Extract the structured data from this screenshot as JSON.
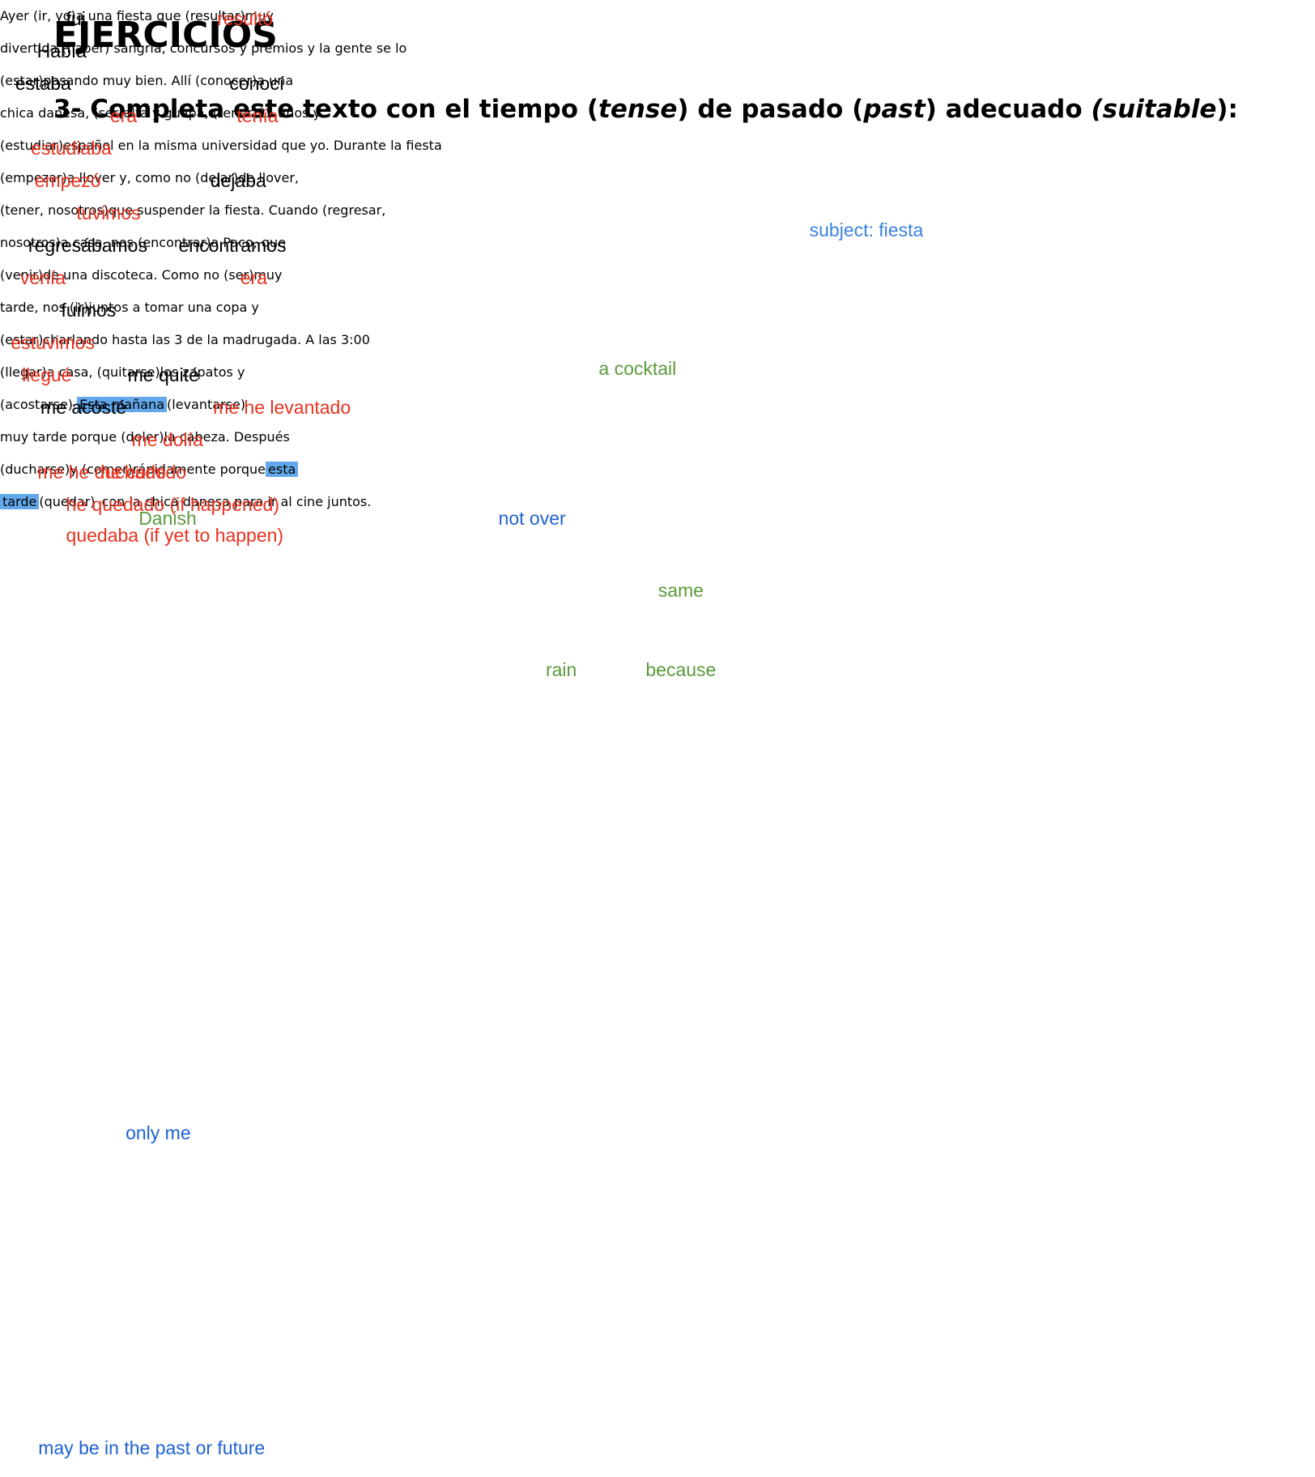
{
  "heading": "EJERCICIOS",
  "instruction": [
    {
      "text": "3- Completa este texto con el tiempo ("
    },
    {
      "text": "tense",
      "italic": true
    },
    {
      "text": ") de pasado ("
    },
    {
      "text": "past",
      "italic": true
    },
    {
      "text": ") adecuado "
    },
    {
      "text": "(suitable",
      "italic": true
    },
    {
      "text": "):"
    }
  ],
  "lines": [
    [
      {
        "text": "Ayer (ir, yo)"
      },
      {
        "answer": "fui",
        "color": "#000000"
      },
      {
        "text": "a una fiesta que (resultar)"
      },
      {
        "answer": "resultó",
        "color": "#e8321f"
      },
      {
        "text": "muy"
      }
    ],
    [
      {
        "text": "divertida."
      },
      {
        "answer": "Había",
        "color": "#000000"
      },
      {
        "text": "(haber) sangría, concursos y premios y la gente se lo"
      }
    ],
    [
      {
        "text": "(estar)"
      },
      {
        "answer": "estaba",
        "color": "#000000"
      },
      {
        "text": "pasando muy bien. Allí (conocer)"
      },
      {
        "answer": "conocí",
        "color": "#000000"
      },
      {
        "text": "a una"
      }
    ],
    [
      {
        "text": "chica danesa, (ser)"
      },
      {
        "answer": "era",
        "color": "#e8321f"
      },
      {
        "text": "alta y guapa, (tener)"
      },
      {
        "answer": "tenía",
        "color": "#e8321f"
      },
      {
        "text": "25 años y"
      }
    ],
    [
      {
        "text": "(estudiar)"
      },
      {
        "answer": "estudiaba",
        "color": "#e8321f"
      },
      {
        "text": "español en la misma universidad que yo. Durante la fiesta"
      }
    ],
    [
      {
        "text": "(empezar)"
      },
      {
        "answer": "empezó",
        "color": "#e8321f"
      },
      {
        "text": "a llover y, como no (dejar)"
      },
      {
        "answer": "dejaba",
        "color": "#000000"
      },
      {
        "text": "de llover,"
      }
    ],
    [
      {
        "text": "(tener, nosotros)"
      },
      {
        "answer": "tuvimos",
        "color": "#e8321f"
      },
      {
        "text": "que suspender la fiesta. Cuando (regresar,"
      }
    ],
    [
      {
        "text": "nosotros)"
      },
      {
        "answer": "regresábamos",
        "color": "#000000"
      },
      {
        "text": "a casa, nos (encontrar)"
      },
      {
        "answer": "encontramos",
        "color": "#000000"
      },
      {
        "text": "a Paco, que"
      }
    ],
    [
      {
        "text": "(venir)"
      },
      {
        "answer": "venía",
        "color": "#e8321f"
      },
      {
        "text": "de una discoteca. Como no (ser)"
      },
      {
        "answer": "era",
        "color": "#e8321f"
      },
      {
        "text": "muy"
      }
    ],
    [
      {
        "text": "tarde, nos (ir)"
      },
      {
        "answer": "fuimos",
        "color": "#000000"
      },
      {
        "text": "juntos a tomar una copa y"
      }
    ],
    [
      {
        "text": "(estar)"
      },
      {
        "answer": "estuvimos",
        "color": "#e8321f"
      },
      {
        "text": "charlando hasta las 3 de la madrugada. A las 3:00"
      }
    ],
    [
      {
        "text": "(llegar)"
      },
      {
        "answer": "llegué",
        "color": "#e8321f"
      },
      {
        "text": "a casa, (quitarse)"
      },
      {
        "answer": "me quité",
        "color": "#000000"
      },
      {
        "text": "los zapatos y"
      }
    ],
    [
      {
        "text": "(acostarse)"
      },
      {
        "answer": "me acosté",
        "color": "#000000"
      },
      {
        "text": "."
      },
      {
        "text": "Esta mañana",
        "highlight": true
      },
      {
        "text": "(levantarse)"
      },
      {
        "answer": "me he levantado",
        "color": "#e8321f"
      }
    ],
    [
      {
        "text": "muy tarde porque (doler)"
      },
      {
        "answer": "me dolía",
        "color": "#e8321f"
      },
      {
        "text": "la cabeza. Después"
      }
    ],
    [
      {
        "text": "(ducharse)"
      },
      {
        "answer": "me he duchado",
        "color": "#e8321f"
      },
      {
        "text": "y (comer)"
      },
      {
        "answer": "he comido",
        "color": "#e8321f"
      },
      {
        "text": "rápidamente porque"
      },
      {
        "text": "esta",
        "highlight": true
      }
    ],
    [
      {
        "text": "tarde",
        "highlight": true
      },
      {
        "text": "(quedar)"
      },
      {
        "answer": "he quedado (if happened)",
        "answer2": "quedaba (if yet to happen)",
        "color": "#e8321f"
      },
      {
        "text": "con la chica danesa para ir al cine juntos."
      }
    ]
  ],
  "notes": [
    {
      "text": "subject: fiesta",
      "color": "#3a82e0"
    },
    {
      "text": "a cocktail",
      "color": "#5b9a3c"
    },
    {
      "text": "Danish",
      "color": "#5b9a3c"
    },
    {
      "text": "not over",
      "color": "#1e62d0"
    },
    {
      "text": "same",
      "color": "#5b9a3c"
    },
    {
      "text": "rain",
      "color": "#5b9a3c"
    },
    {
      "text": "because",
      "color": "#5b9a3c"
    },
    {
      "text": "only me",
      "color": "#1e62d0"
    },
    {
      "text": "may be in the past or future",
      "color": "#1e62d0"
    }
  ]
}
